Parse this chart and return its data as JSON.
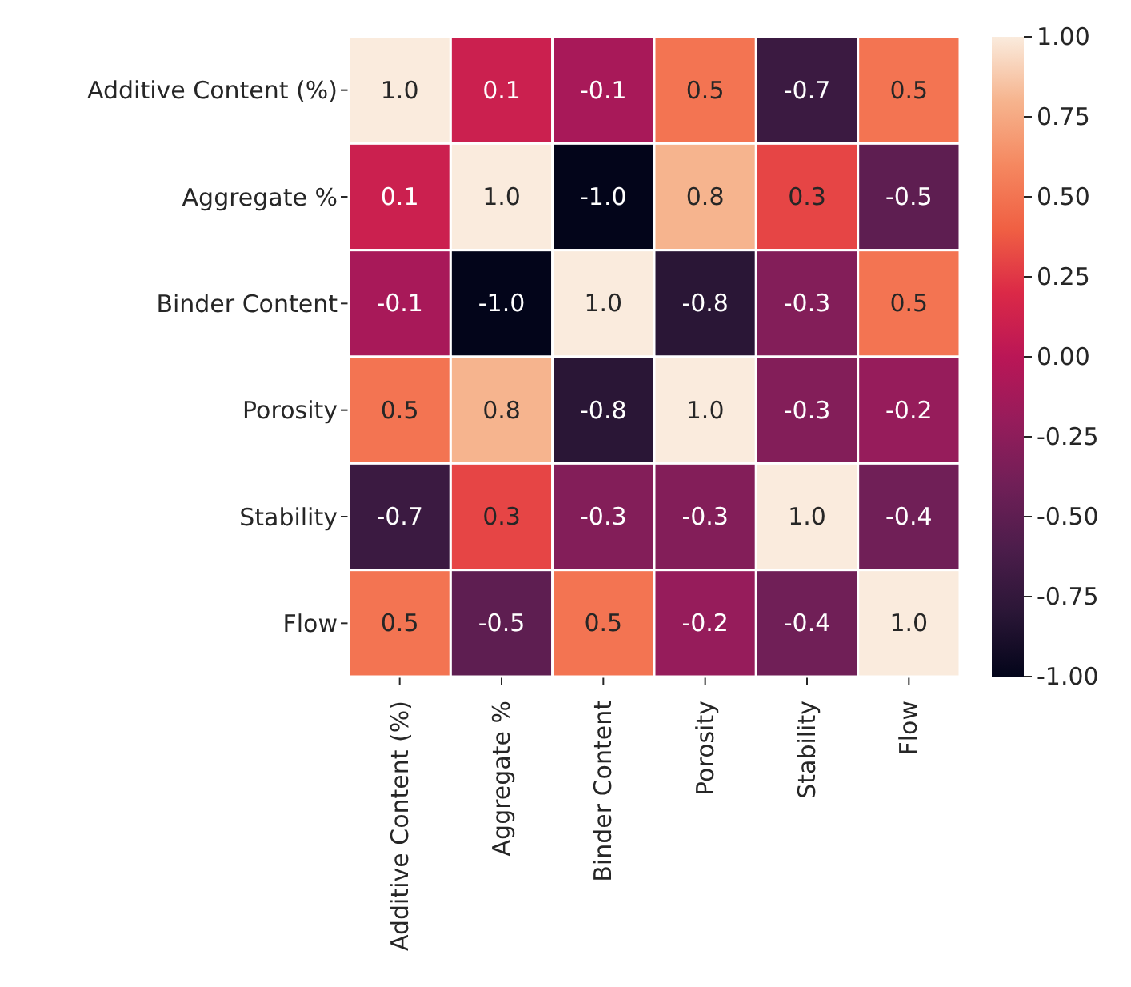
{
  "chart_data": {
    "type": "heatmap",
    "categories": [
      "Additive Content (%)",
      "Aggregate %",
      "Binder Content",
      "Porosity",
      "Stability",
      "Flow"
    ],
    "y_categories": [
      "Additive Content (%)",
      "Aggregate %",
      "Binder Content",
      "Porosity",
      "Stability",
      "Flow"
    ],
    "cells": [
      [
        1.0,
        0.1,
        -0.1,
        0.5,
        -0.7,
        0.5
      ],
      [
        0.1,
        1.0,
        -1.0,
        0.8,
        0.3,
        -0.5
      ],
      [
        -0.1,
        -1.0,
        1.0,
        -0.8,
        -0.3,
        0.5
      ],
      [
        0.5,
        0.8,
        -0.8,
        1.0,
        -0.3,
        -0.2
      ],
      [
        -0.7,
        0.3,
        -0.3,
        -0.3,
        1.0,
        -0.4
      ],
      [
        0.5,
        -0.5,
        0.5,
        -0.2,
        -0.4,
        1.0
      ]
    ],
    "cell_labels": [
      [
        "1.0",
        "0.1",
        "-0.1",
        "0.5",
        "-0.7",
        "0.5"
      ],
      [
        "0.1",
        "1.0",
        "-1.0",
        "0.8",
        "0.3",
        "-0.5"
      ],
      [
        "-0.1",
        "-1.0",
        "1.0",
        "-0.8",
        "-0.3",
        "0.5"
      ],
      [
        "0.5",
        "0.8",
        "-0.8",
        "1.0",
        "-0.3",
        "-0.2"
      ],
      [
        "-0.7",
        "0.3",
        "-0.3",
        "-0.3",
        "1.0",
        "-0.4"
      ],
      [
        "0.5",
        "-0.5",
        "0.5",
        "-0.2",
        "-0.4",
        "1.0"
      ]
    ],
    "clim": [
      -1,
      1
    ],
    "cticks": [
      {
        "value": -1,
        "label": "-1.00"
      },
      {
        "value": -0.75,
        "label": "-0.75"
      },
      {
        "value": -0.5,
        "label": "-0.50"
      },
      {
        "value": -0.25,
        "label": "-0.25"
      },
      {
        "value": 0,
        "label": "0.00"
      },
      {
        "value": 0.25,
        "label": "0.25"
      },
      {
        "value": 0.5,
        "label": "0.50"
      },
      {
        "value": 0.75,
        "label": "0.75"
      },
      {
        "value": 1,
        "label": "1.00"
      }
    ]
  }
}
